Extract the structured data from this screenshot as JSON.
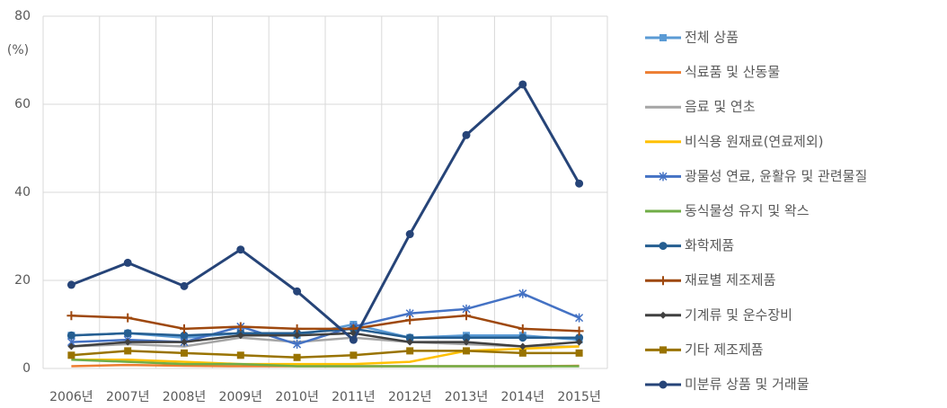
{
  "chart_data": {
    "type": "line",
    "y_label": "(%)",
    "categories": [
      "2006년",
      "2007년",
      "2008년",
      "2009년",
      "2010년",
      "2011년",
      "2012년",
      "2013년",
      "2014년",
      "2015년"
    ],
    "ylim": [
      0,
      80
    ],
    "yticks": [
      0,
      20,
      40,
      60,
      80
    ],
    "grid": true,
    "legend": "right",
    "series": [
      {
        "name": "전체 상품",
        "color": "#5b9bd5",
        "marker": "square",
        "values": [
          7.5,
          8,
          7,
          8,
          7.5,
          10,
          7,
          7.5,
          7.5,
          6.5
        ]
      },
      {
        "name": "식료품 및 산동물",
        "color": "#ed7d31",
        "marker": "none",
        "values": [
          0.5,
          0.8,
          0.6,
          0.5,
          0.5,
          0.5,
          0.5,
          0.5,
          0.5,
          0.6
        ]
      },
      {
        "name": "음료 및 연초",
        "color": "#a5a5a5",
        "marker": "none",
        "values": [
          5,
          5.5,
          5,
          7,
          6,
          7,
          6,
          5.5,
          5,
          5
        ]
      },
      {
        "name": "비식용 원재료(연료제외)",
        "color": "#ffc000",
        "marker": "none",
        "values": [
          2,
          2,
          1.5,
          1,
          1,
          1,
          1.5,
          4,
          4.5,
          5
        ]
      },
      {
        "name": "광물성 연료, 윤활유 및 관련물질",
        "color": "#4472c4",
        "marker": "asterisk",
        "values": [
          6,
          6.5,
          6,
          9.5,
          5.5,
          9.5,
          12.5,
          13.5,
          17,
          11.5
        ]
      },
      {
        "name": "동식물성 유지 및 왁스",
        "color": "#70ad47",
        "marker": "none",
        "values": [
          2,
          1.5,
          1,
          1,
          0.5,
          0.5,
          0.5,
          0.5,
          0.5,
          0.5
        ]
      },
      {
        "name": "화학제품",
        "color": "#255e91",
        "marker": "circle",
        "values": [
          7.5,
          8,
          7.5,
          8,
          8,
          9,
          7,
          7,
          7,
          7
        ]
      },
      {
        "name": "재료별 제조제품",
        "color": "#9e480e",
        "marker": "plus",
        "values": [
          12,
          11.5,
          9,
          9.5,
          9,
          9,
          11,
          12,
          9,
          8.5
        ]
      },
      {
        "name": "기계류 및 운수장비",
        "color": "#404040",
        "marker": "diamond",
        "values": [
          5,
          6,
          6,
          7.5,
          7.5,
          8,
          6,
          6,
          5,
          6
        ]
      },
      {
        "name": "기타 제조제품",
        "color": "#997300",
        "marker": "square",
        "values": [
          3,
          4,
          3.5,
          3,
          2.5,
          3,
          4,
          4,
          3.5,
          3.5
        ]
      },
      {
        "name": "미분류 상품 및 거래물",
        "color": "#264478",
        "marker": "circle",
        "values": [
          19,
          24,
          18.7,
          27,
          17.5,
          6.5,
          30.5,
          53,
          64.5,
          42
        ]
      }
    ]
  }
}
